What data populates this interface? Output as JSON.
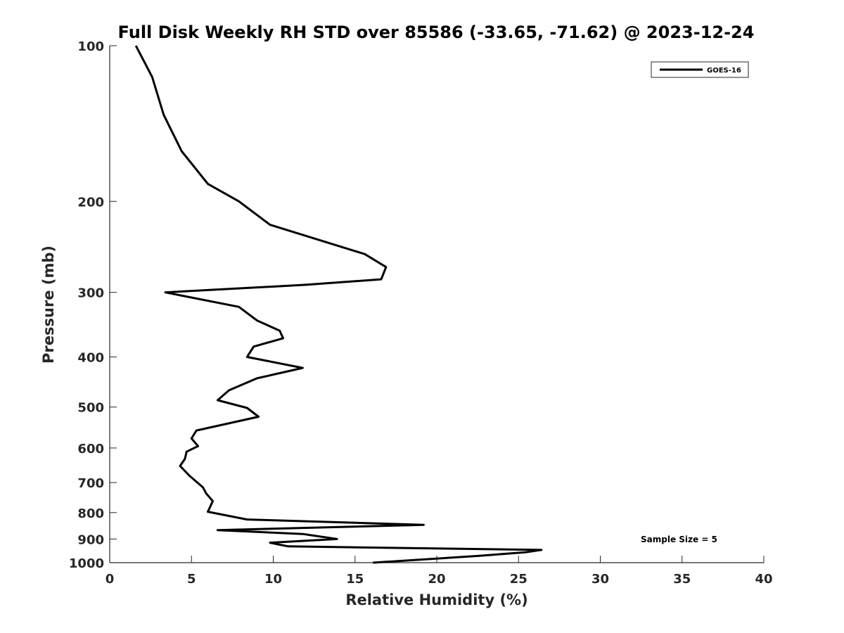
{
  "chart_data": {
    "type": "line",
    "title": "Full Disk Weekly RH STD over 85586 (-33.65, -71.62) @ 2023-12-24",
    "xlabel": "Relative Humidity (%)",
    "ylabel": "Pressure (mb)",
    "xlim": [
      0,
      40
    ],
    "ylim": [
      100,
      1000
    ],
    "y_scale": "log",
    "y_reversed": true,
    "xticks": [
      "0",
      "5",
      "10",
      "15",
      "20",
      "25",
      "30",
      "35",
      "40"
    ],
    "yticks": [
      "100",
      "200",
      "300",
      "400",
      "500",
      "600",
      "700",
      "800",
      "900",
      "1000"
    ],
    "grid": false,
    "legend_position": "top-right",
    "series": [
      {
        "name": "GOES-16",
        "color": "#000000",
        "points": [
          [
            1.6,
            100
          ],
          [
            2.6,
            115
          ],
          [
            3.3,
            136
          ],
          [
            4.4,
            160
          ],
          [
            6.0,
            185
          ],
          [
            7.9,
            200
          ],
          [
            9.8,
            222
          ],
          [
            15.6,
            253
          ],
          [
            16.9,
            268
          ],
          [
            16.6,
            283
          ],
          [
            12.0,
            290
          ],
          [
            3.4,
            300
          ],
          [
            7.9,
            320
          ],
          [
            9.0,
            340
          ],
          [
            10.4,
            356
          ],
          [
            10.6,
            368
          ],
          [
            8.8,
            382
          ],
          [
            8.4,
            400
          ],
          [
            11.8,
            420
          ],
          [
            9.0,
            440
          ],
          [
            7.3,
            464
          ],
          [
            6.6,
            485
          ],
          [
            8.4,
            502
          ],
          [
            9.1,
            522
          ],
          [
            5.3,
            555
          ],
          [
            5.0,
            575
          ],
          [
            5.4,
            595
          ],
          [
            4.7,
            610
          ],
          [
            4.6,
            630
          ],
          [
            4.3,
            650
          ],
          [
            4.9,
            680
          ],
          [
            5.7,
            715
          ],
          [
            5.9,
            735
          ],
          [
            6.3,
            760
          ],
          [
            6.1,
            785
          ],
          [
            6.0,
            797
          ],
          [
            8.4,
            825
          ],
          [
            19.2,
            845
          ],
          [
            6.6,
            865
          ],
          [
            11.8,
            880
          ],
          [
            13.9,
            900
          ],
          [
            9.8,
            915
          ],
          [
            10.9,
            930
          ],
          [
            26.4,
            945
          ],
          [
            25.4,
            955
          ],
          [
            22.6,
            970
          ],
          [
            16.1,
            1000
          ]
        ]
      }
    ],
    "annotations": [
      "Sample Size = 5"
    ]
  }
}
